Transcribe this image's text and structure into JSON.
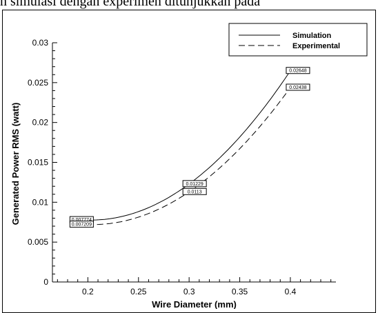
{
  "caption": "n simulasi dengan experimen ditunjukkan pada",
  "chart_data": {
    "type": "line",
    "title": "",
    "xlabel": "Wire Diameter (mm)",
    "ylabel": "Generated Power RMS (watt)",
    "xlim": [
      0.165,
      0.445
    ],
    "ylim": [
      0,
      0.03
    ],
    "xticks": [
      "0.2",
      "0.25",
      "0.3",
      "0.35",
      "0.4"
    ],
    "yticks": [
      "0",
      "0.005",
      "0.01",
      "0.015",
      "0.02",
      "0.025",
      "0.03"
    ],
    "legend_position": "top-right",
    "grid": false,
    "series": [
      {
        "name": "Simulation",
        "style": "solid",
        "x": [
          0.2,
          0.3,
          0.4
        ],
        "y": [
          0.007774,
          0.01229,
          0.02648
        ],
        "labels": [
          "0.007774",
          "0.01229",
          "0.02648"
        ]
      },
      {
        "name": "Experimental",
        "style": "dashed",
        "x": [
          0.2,
          0.3,
          0.4
        ],
        "y": [
          0.007209,
          0.0113,
          0.02438
        ],
        "labels": [
          "0.007209",
          "0.0113",
          "0.02438"
        ]
      }
    ]
  }
}
